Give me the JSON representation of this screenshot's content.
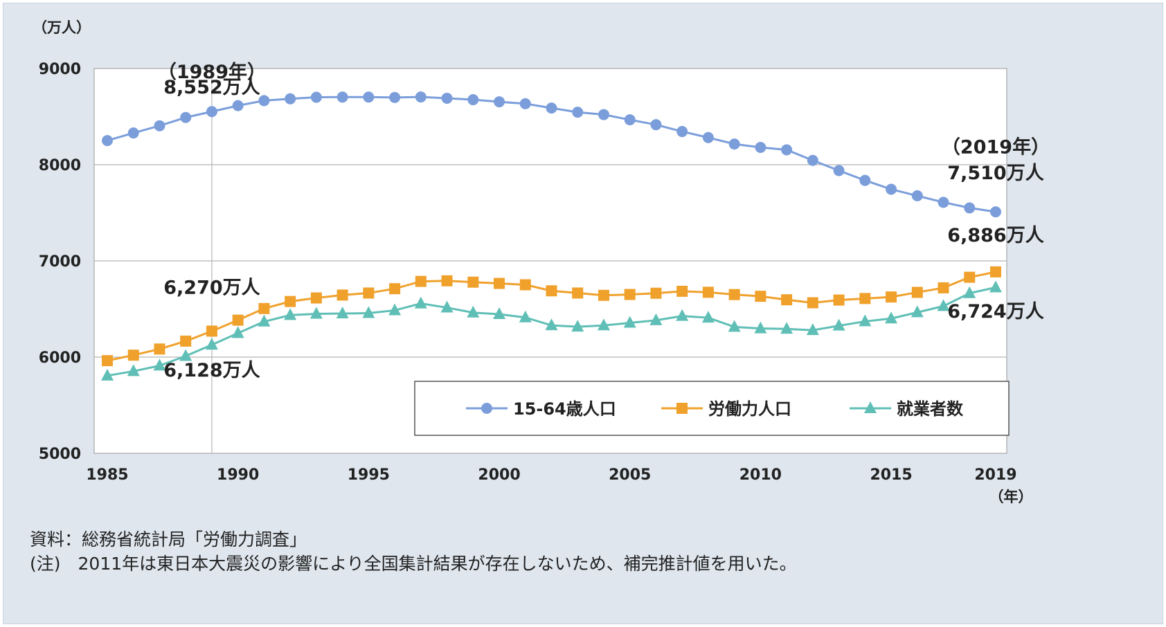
{
  "chart_data": {
    "type": "line",
    "y_unit_label": "（万人）",
    "x_unit_label": "（年）",
    "ylim": [
      5000,
      9000
    ],
    "xlim": [
      1985,
      2019
    ],
    "y_ticks": [
      "5000",
      "6000",
      "7000",
      "8000",
      "9000"
    ],
    "x_ticks": [
      "1985",
      "1990",
      "1995",
      "2000",
      "2005",
      "2010",
      "2015",
      "2019"
    ],
    "grid": true,
    "legend_position": "bottom-right",
    "x": [
      1985,
      1986,
      1987,
      1988,
      1989,
      1990,
      1991,
      1992,
      1993,
      1994,
      1995,
      1996,
      1997,
      1998,
      1999,
      2000,
      2001,
      2002,
      2003,
      2004,
      2005,
      2006,
      2007,
      2008,
      2009,
      2010,
      2011,
      2012,
      2013,
      2014,
      2015,
      2016,
      2017,
      2018,
      2019
    ],
    "series": [
      {
        "name": "15-64歳人口",
        "color": "#7b9edb",
        "marker": "circle",
        "values": [
          8251,
          8330,
          8405,
          8491,
          8552,
          8614,
          8666,
          8685,
          8701,
          8703,
          8703,
          8699,
          8704,
          8691,
          8676,
          8654,
          8634,
          8589,
          8546,
          8521,
          8467,
          8416,
          8345,
          8282,
          8215,
          8180,
          8155,
          8045,
          7939,
          7837,
          7745,
          7677,
          7609,
          7551,
          7510
        ]
      },
      {
        "name": "労働力人口",
        "color": "#f0a12c",
        "marker": "square",
        "values": [
          5963,
          6020,
          6084,
          6166,
          6270,
          6384,
          6505,
          6578,
          6615,
          6645,
          6666,
          6711,
          6787,
          6793,
          6779,
          6766,
          6752,
          6689,
          6666,
          6642,
          6651,
          6664,
          6684,
          6674,
          6650,
          6632,
          6596,
          6565,
          6593,
          6609,
          6625,
          6673,
          6720,
          6830,
          6886
        ]
      },
      {
        "name": "就業者数",
        "color": "#5fbfb6",
        "marker": "triangle",
        "values": [
          5807,
          5853,
          5911,
          6011,
          6128,
          6249,
          6369,
          6436,
          6450,
          6453,
          6457,
          6486,
          6557,
          6514,
          6462,
          6446,
          6412,
          6330,
          6316,
          6329,
          6356,
          6382,
          6427,
          6409,
          6314,
          6298,
          6293,
          6280,
          6326,
          6371,
          6401,
          6465,
          6530,
          6664,
          6724
        ]
      }
    ],
    "annotations": [
      {
        "text": "（1989年）",
        "x": 1989,
        "y": 8900
      },
      {
        "text": "8,552万人",
        "x": 1989,
        "y": 8740
      },
      {
        "text": "6,270万人",
        "x": 1989,
        "y": 6660
      },
      {
        "text": "6,128万人",
        "x": 1989,
        "y": 5800
      },
      {
        "text": "（2019年）",
        "x": 2019,
        "y": 8120
      },
      {
        "text": "7,510万人",
        "x": 2019,
        "y": 7850
      },
      {
        "text": "6,886万人",
        "x": 2019,
        "y": 7200
      },
      {
        "text": "6,724万人",
        "x": 2019,
        "y": 6410
      }
    ],
    "reference_line_x": 1989
  },
  "notes": {
    "source": "資料：総務省統計局「労働力調査」",
    "note": "(注)　2011年は東日本大震災の影響により全国集計結果が存在しないため、補完推計値を用いた。"
  }
}
